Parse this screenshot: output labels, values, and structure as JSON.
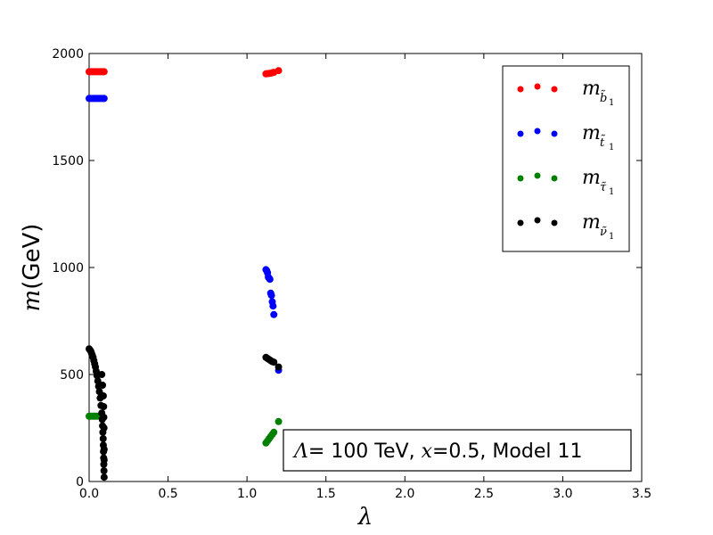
{
  "chart_data": {
    "type": "scatter",
    "xlabel": "λ",
    "ylabel_symbol": "m",
    "ylabel_unit": "(GeV)",
    "xlim": [
      0,
      3.5
    ],
    "ylim": [
      0,
      2000
    ],
    "xticks": [
      "0.0",
      "0.5",
      "1.0",
      "1.5",
      "2.0",
      "2.5",
      "3.0",
      "3.5"
    ],
    "yticks": [
      "0",
      "500",
      "1000",
      "1500",
      "2000"
    ],
    "grid": false,
    "legend_position": "top-right",
    "annotation": {
      "lambda_sym": "Λ",
      "lambda_text": "= 100 TeV, ",
      "x_sym": "x",
      "x_text": "=0.5, Model 11"
    },
    "series": [
      {
        "name": "m_b̃1",
        "symbol": "m",
        "sub_main": "b̃",
        "sub_index": "1",
        "color": "#ff0000",
        "points": [
          [
            0.0,
            1915
          ],
          [
            0.01,
            1915
          ],
          [
            0.02,
            1915
          ],
          [
            0.03,
            1915
          ],
          [
            0.04,
            1915
          ],
          [
            0.05,
            1915
          ],
          [
            0.06,
            1915
          ],
          [
            0.07,
            1915
          ],
          [
            0.08,
            1915
          ],
          [
            0.09,
            1915
          ],
          [
            0.095,
            1915
          ],
          [
            1.12,
            1905
          ],
          [
            1.13,
            1906
          ],
          [
            1.14,
            1907
          ],
          [
            1.15,
            1908
          ],
          [
            1.16,
            1910
          ],
          [
            1.17,
            1912
          ],
          [
            1.2,
            1920
          ]
        ]
      },
      {
        "name": "m_t̃1",
        "symbol": "m",
        "sub_main": "t̃",
        "sub_index": "1",
        "color": "#0000ff",
        "points": [
          [
            0.0,
            1790
          ],
          [
            0.01,
            1790
          ],
          [
            0.02,
            1790
          ],
          [
            0.03,
            1790
          ],
          [
            0.04,
            1790
          ],
          [
            0.05,
            1790
          ],
          [
            0.06,
            1790
          ],
          [
            0.07,
            1790
          ],
          [
            0.08,
            1790
          ],
          [
            0.09,
            1790
          ],
          [
            0.095,
            1790
          ],
          [
            1.12,
            990
          ],
          [
            1.125,
            985
          ],
          [
            1.13,
            975
          ],
          [
            1.135,
            955
          ],
          [
            1.14,
            950
          ],
          [
            1.145,
            945
          ],
          [
            1.15,
            880
          ],
          [
            1.155,
            870
          ],
          [
            1.16,
            840
          ],
          [
            1.165,
            820
          ],
          [
            1.17,
            780
          ],
          [
            1.2,
            520
          ]
        ]
      },
      {
        "name": "m_τ̃1",
        "symbol": "m",
        "sub_main": "τ̃",
        "sub_index": "1",
        "color": "#008000",
        "points": [
          [
            0.0,
            305
          ],
          [
            0.01,
            305
          ],
          [
            0.02,
            305
          ],
          [
            0.03,
            305
          ],
          [
            0.04,
            305
          ],
          [
            0.05,
            305
          ],
          [
            1.12,
            180
          ],
          [
            1.13,
            190
          ],
          [
            1.14,
            200
          ],
          [
            1.15,
            210
          ],
          [
            1.16,
            220
          ],
          [
            1.17,
            230
          ],
          [
            1.2,
            280
          ]
        ]
      },
      {
        "name": "m_ν̃1",
        "symbol": "m",
        "sub_main": "ν̃",
        "sub_index": "1",
        "color": "#000000",
        "points": [
          [
            0.0,
            620
          ],
          [
            0.005,
            615
          ],
          [
            0.01,
            610
          ],
          [
            0.015,
            600
          ],
          [
            0.02,
            590
          ],
          [
            0.025,
            580
          ],
          [
            0.03,
            565
          ],
          [
            0.035,
            550
          ],
          [
            0.04,
            535
          ],
          [
            0.045,
            515
          ],
          [
            0.05,
            495
          ],
          [
            0.055,
            470
          ],
          [
            0.06,
            445
          ],
          [
            0.065,
            420
          ],
          [
            0.07,
            390
          ],
          [
            0.075,
            355
          ],
          [
            0.08,
            320
          ],
          [
            0.083,
            290
          ],
          [
            0.085,
            260
          ],
          [
            0.087,
            230
          ],
          [
            0.089,
            200
          ],
          [
            0.09,
            170
          ],
          [
            0.091,
            140
          ],
          [
            0.092,
            110
          ],
          [
            0.093,
            80
          ],
          [
            0.094,
            50
          ],
          [
            0.095,
            20
          ],
          [
            0.08,
            500
          ],
          [
            0.085,
            450
          ],
          [
            0.09,
            400
          ],
          [
            0.092,
            350
          ],
          [
            0.093,
            300
          ],
          [
            0.094,
            250
          ],
          [
            0.095,
            150
          ],
          [
            0.095,
            100
          ],
          [
            1.12,
            580
          ],
          [
            1.13,
            575
          ],
          [
            1.14,
            570
          ],
          [
            1.15,
            565
          ],
          [
            1.16,
            560
          ],
          [
            1.17,
            558
          ],
          [
            1.2,
            535
          ]
        ]
      }
    ]
  }
}
